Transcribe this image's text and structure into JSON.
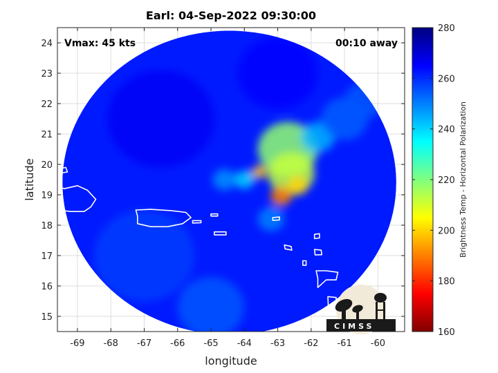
{
  "chart_data": {
    "type": "heatmap",
    "title": "Earl: 04-Sep-2022 09:30:00",
    "annotations": {
      "left": "Vmax: 45 kts",
      "right": "00:10 away"
    },
    "xlabel": "longitude",
    "ylabel": "latitude",
    "xlim": [
      -69.6,
      -59.2
    ],
    "ylim": [
      14.5,
      24.5
    ],
    "x_ticks": [
      -69,
      -68,
      -67,
      -66,
      -65,
      -64,
      -63,
      -62,
      -61,
      -60
    ],
    "y_ticks": [
      15,
      16,
      17,
      18,
      19,
      20,
      21,
      22,
      23,
      24
    ],
    "grid": true,
    "colorbar": {
      "label": "Brightness Temp - Horizontal Polarization",
      "range": [
        160,
        280
      ],
      "ticks": [
        160,
        180,
        200,
        220,
        240,
        260,
        280
      ],
      "colormap": "jet",
      "placement": "right"
    },
    "background_value": 262,
    "swath": {
      "center_lon": -64.45,
      "center_lat": 19.4,
      "radius_lon": 5.0,
      "radius_lat": 5.0
    },
    "features": [
      {
        "lon": -62.7,
        "lat": 20.5,
        "value": 218,
        "spread": 0.9
      },
      {
        "lon": -62.6,
        "lat": 19.7,
        "value": 212,
        "spread": 0.7
      },
      {
        "lon": -62.9,
        "lat": 18.95,
        "value": 190,
        "spread": 0.32
      },
      {
        "lon": -62.4,
        "lat": 19.3,
        "value": 200,
        "spread": 0.3
      },
      {
        "lon": -63.55,
        "lat": 19.75,
        "value": 198,
        "spread": 0.22
      },
      {
        "lon": -61.8,
        "lat": 20.9,
        "value": 244,
        "spread": 0.5
      },
      {
        "lon": -61.0,
        "lat": 21.5,
        "value": 254,
        "spread": 0.7
      },
      {
        "lon": -60.4,
        "lat": 22.1,
        "value": 255,
        "spread": 0.6
      },
      {
        "lon": -64.0,
        "lat": 19.5,
        "value": 240,
        "spread": 0.3
      },
      {
        "lon": -64.6,
        "lat": 19.5,
        "value": 248,
        "spread": 0.35
      },
      {
        "lon": -63.2,
        "lat": 18.2,
        "value": 250,
        "spread": 0.4
      },
      {
        "lon": -66.5,
        "lat": 21.5,
        "value": 266,
        "spread": 1.6
      },
      {
        "lon": -63.0,
        "lat": 23.0,
        "value": 265,
        "spread": 1.2
      },
      {
        "lon": -67.0,
        "lat": 17.0,
        "value": 258,
        "spread": 1.5
      },
      {
        "lon": -65.0,
        "lat": 15.3,
        "value": 255,
        "spread": 1.0
      }
    ],
    "coastlines": [
      {
        "name": "Hispaniola",
        "points": [
          [
            -69.6,
            19.3
          ],
          [
            -69.4,
            19.2
          ],
          [
            -69.0,
            19.3
          ],
          [
            -68.7,
            19.15
          ],
          [
            -68.45,
            18.85
          ],
          [
            -68.6,
            18.6
          ],
          [
            -68.8,
            18.45
          ],
          [
            -69.2,
            18.45
          ],
          [
            -69.6,
            18.5
          ]
        ]
      },
      {
        "name": "Puerto Rico",
        "points": [
          [
            -67.25,
            18.5
          ],
          [
            -66.8,
            18.52
          ],
          [
            -66.2,
            18.48
          ],
          [
            -65.75,
            18.42
          ],
          [
            -65.6,
            18.25
          ],
          [
            -65.85,
            18.05
          ],
          [
            -66.3,
            17.95
          ],
          [
            -66.8,
            17.95
          ],
          [
            -67.2,
            18.05
          ],
          [
            -67.2,
            18.3
          ]
        ]
      },
      {
        "name": "Isla Mona",
        "points": [
          [
            -69.6,
            19.85
          ],
          [
            -69.35,
            19.9
          ],
          [
            -69.3,
            19.75
          ],
          [
            -69.6,
            19.7
          ]
        ]
      },
      {
        "name": "Vieques",
        "points": [
          [
            -65.55,
            18.15
          ],
          [
            -65.3,
            18.15
          ],
          [
            -65.3,
            18.08
          ],
          [
            -65.55,
            18.07
          ]
        ]
      },
      {
        "name": "St Thomas",
        "points": [
          [
            -65.0,
            18.37
          ],
          [
            -64.8,
            18.37
          ],
          [
            -64.8,
            18.3
          ],
          [
            -65.0,
            18.3
          ]
        ]
      },
      {
        "name": "St Croix",
        "points": [
          [
            -64.9,
            17.78
          ],
          [
            -64.55,
            17.78
          ],
          [
            -64.55,
            17.68
          ],
          [
            -64.9,
            17.68
          ]
        ]
      },
      {
        "name": "Anguilla",
        "points": [
          [
            -63.15,
            18.25
          ],
          [
            -62.95,
            18.27
          ],
          [
            -62.95,
            18.17
          ],
          [
            -63.15,
            18.16
          ]
        ]
      },
      {
        "name": "Barbuda",
        "points": [
          [
            -61.9,
            17.7
          ],
          [
            -61.75,
            17.72
          ],
          [
            -61.75,
            17.58
          ],
          [
            -61.9,
            17.56
          ]
        ]
      },
      {
        "name": "Antigua",
        "points": [
          [
            -61.9,
            17.2
          ],
          [
            -61.7,
            17.18
          ],
          [
            -61.68,
            17.03
          ],
          [
            -61.88,
            17.02
          ]
        ]
      },
      {
        "name": "St Kitts",
        "points": [
          [
            -62.8,
            17.35
          ],
          [
            -62.6,
            17.3
          ],
          [
            -62.58,
            17.18
          ],
          [
            -62.78,
            17.22
          ]
        ]
      },
      {
        "name": "Montserrat",
        "points": [
          [
            -62.25,
            16.83
          ],
          [
            -62.15,
            16.83
          ],
          [
            -62.15,
            16.68
          ],
          [
            -62.25,
            16.68
          ]
        ]
      },
      {
        "name": "Guadeloupe",
        "points": [
          [
            -61.85,
            16.5
          ],
          [
            -61.55,
            16.5
          ],
          [
            -61.2,
            16.45
          ],
          [
            -61.25,
            16.2
          ],
          [
            -61.55,
            16.2
          ],
          [
            -61.8,
            15.95
          ],
          [
            -61.8,
            16.25
          ]
        ]
      },
      {
        "name": "Dominica",
        "points": [
          [
            -61.5,
            15.65
          ],
          [
            -61.25,
            15.62
          ],
          [
            -61.24,
            15.2
          ],
          [
            -61.48,
            15.22
          ]
        ]
      }
    ]
  }
}
